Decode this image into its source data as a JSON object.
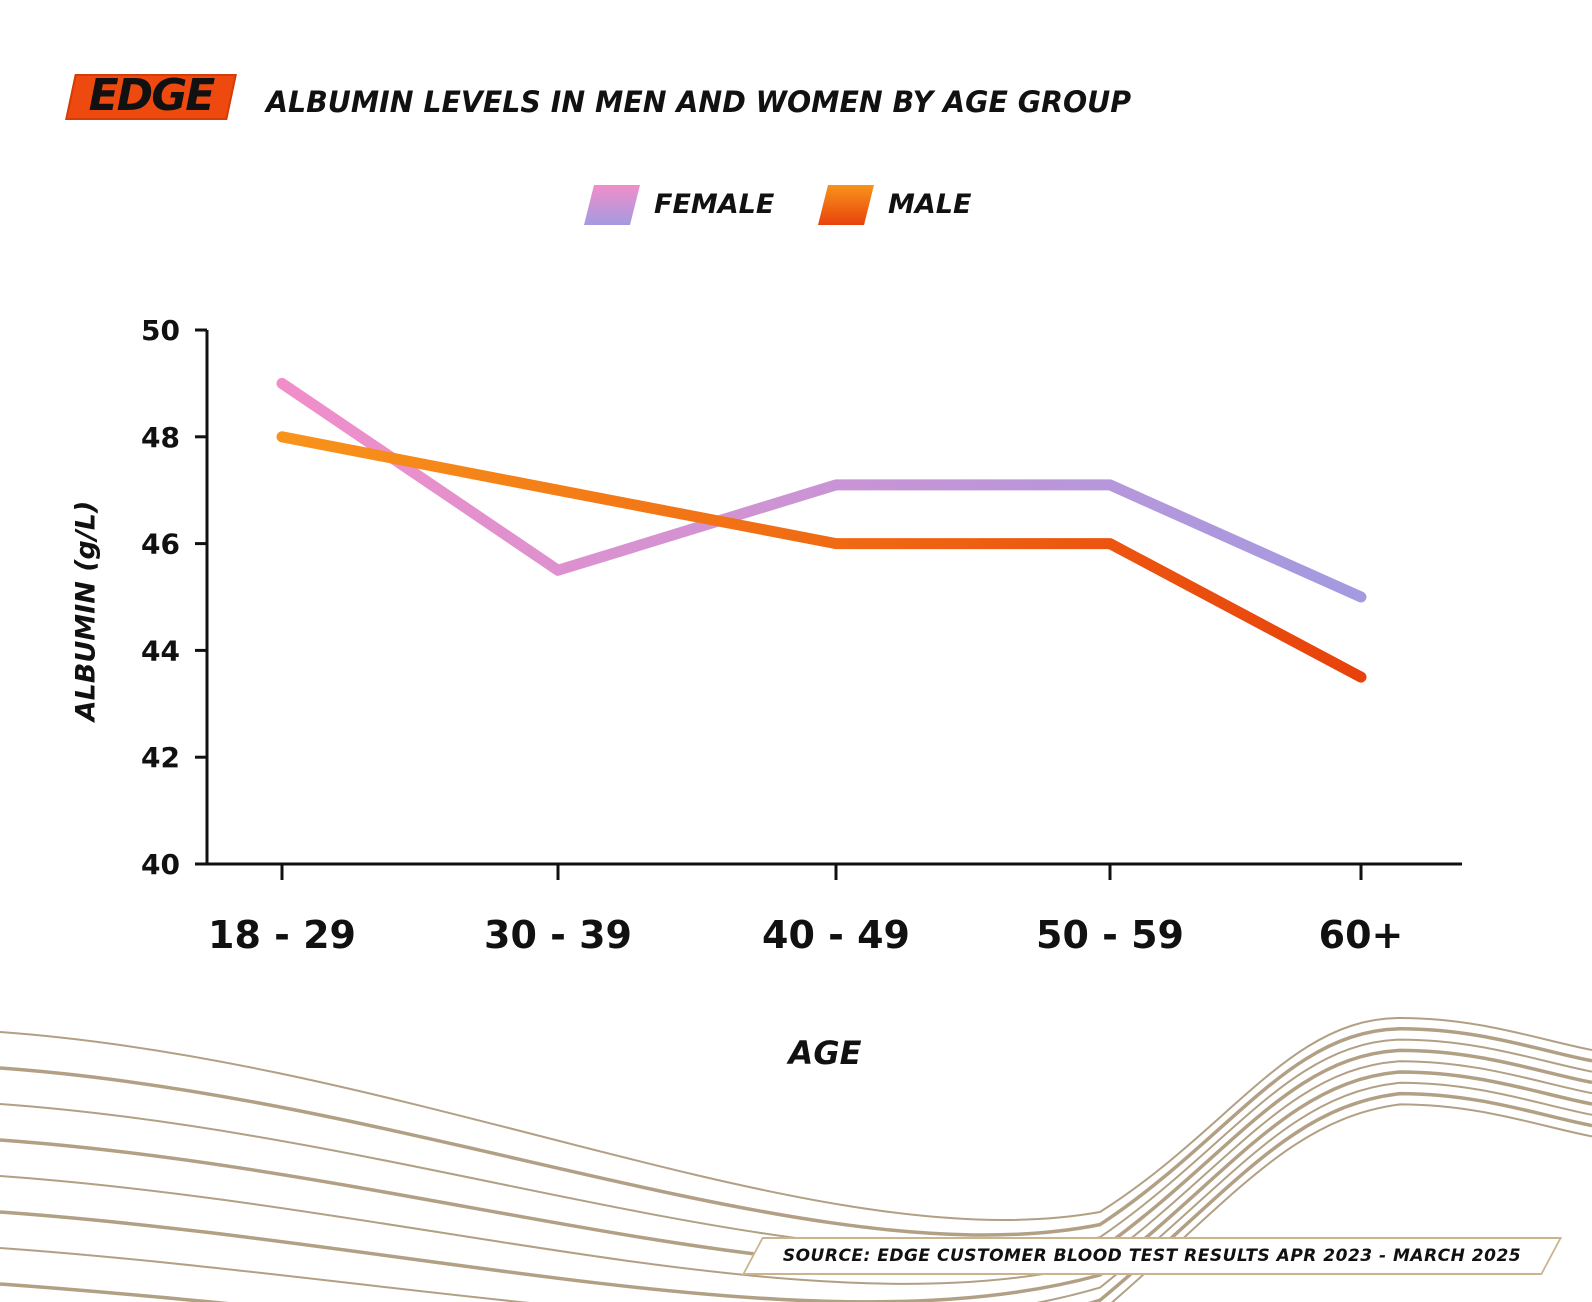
{
  "brand": {
    "logo_text": "EDGE",
    "logo_color": "#ee4a10"
  },
  "header": {
    "title": "ALBUMIN LEVELS IN MEN AND WOMEN BY AGE GROUP"
  },
  "legend": [
    {
      "label": "FEMALE",
      "colors": [
        "#f18ec9",
        "#a39ae0"
      ]
    },
    {
      "label": "MALE",
      "colors": [
        "#f8931b",
        "#e8420c"
      ]
    }
  ],
  "footer": {
    "source": "SOURCE: EDGE CUSTOMER BLOOD TEST RESULTS APR 2023 - MARCH 2025"
  },
  "chart_data": {
    "type": "line",
    "title": "ALBUMIN LEVELS IN MEN AND WOMEN BY AGE GROUP",
    "xlabel": "AGE",
    "ylabel": "ALBUMIN (g/L)",
    "categories": [
      "18 - 29",
      "30 - 39",
      "40 - 49",
      "50 - 59",
      "60+"
    ],
    "ylim": [
      40,
      50
    ],
    "yticks": [
      40,
      42,
      44,
      46,
      48,
      50
    ],
    "grid": false,
    "legend_position": "top-center",
    "series": [
      {
        "name": "FEMALE",
        "values": [
          49.0,
          45.5,
          47.1,
          47.1,
          45.0
        ],
        "colors": [
          "#f18ec9",
          "#a39ae0"
        ]
      },
      {
        "name": "MALE",
        "values": [
          48.0,
          47.0,
          46.0,
          46.0,
          43.5
        ],
        "colors": [
          "#f8931b",
          "#e8420c"
        ]
      }
    ]
  }
}
